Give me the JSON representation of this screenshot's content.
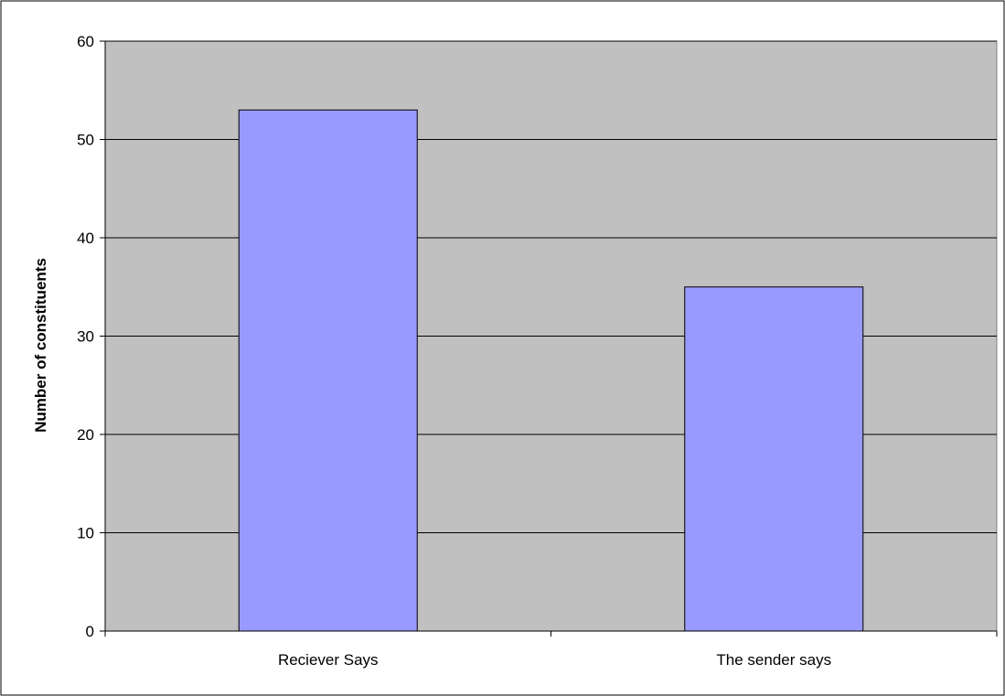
{
  "chart_data": {
    "type": "bar",
    "title": "",
    "xlabel": "",
    "ylabel": "Number of constituents",
    "categories": [
      "Reciever Says",
      "The sender says"
    ],
    "values": [
      53,
      35
    ],
    "ylim": [
      0,
      60
    ],
    "yticks": [
      0,
      10,
      20,
      30,
      40,
      50,
      60
    ],
    "grid": true,
    "legend": "none",
    "colors": {
      "bar_fill": "#9999ff",
      "bar_stroke": "#000000",
      "plot_background": "#c0c0c0",
      "gridline": "#000000",
      "chart_border": "#000000"
    }
  }
}
